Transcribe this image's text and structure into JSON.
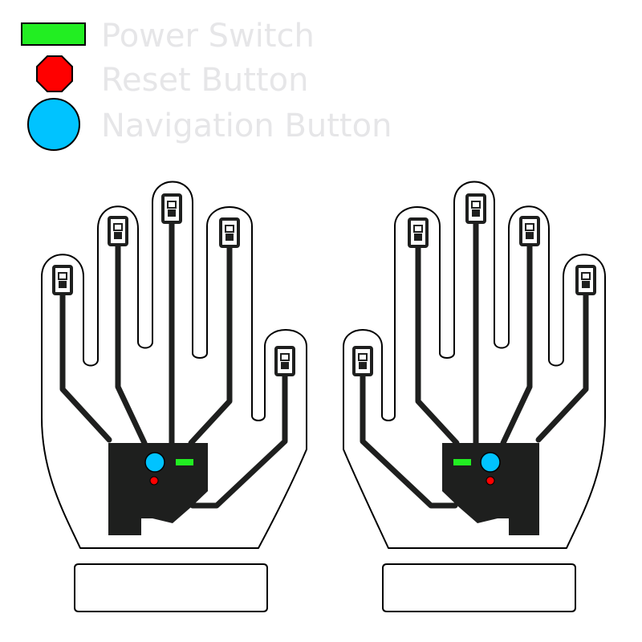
{
  "legend": {
    "items": [
      {
        "label": "Power Switch",
        "color": "#22ee22",
        "shape": "rectangle"
      },
      {
        "label": "Reset Button",
        "color": "#ff0000",
        "shape": "octagon"
      },
      {
        "label": "Navigation Button",
        "color": "#00c3ff",
        "shape": "circle"
      }
    ]
  },
  "colors": {
    "controller": "#1e1f1e",
    "wire": "#1e1f1e",
    "outline": "#000000",
    "glove_fill": "#ffffff",
    "legend_text": "#e6e6e8"
  },
  "gloves": [
    {
      "side": "left",
      "fingertip_sensors": 5
    },
    {
      "side": "right",
      "fingertip_sensors": 5
    }
  ]
}
